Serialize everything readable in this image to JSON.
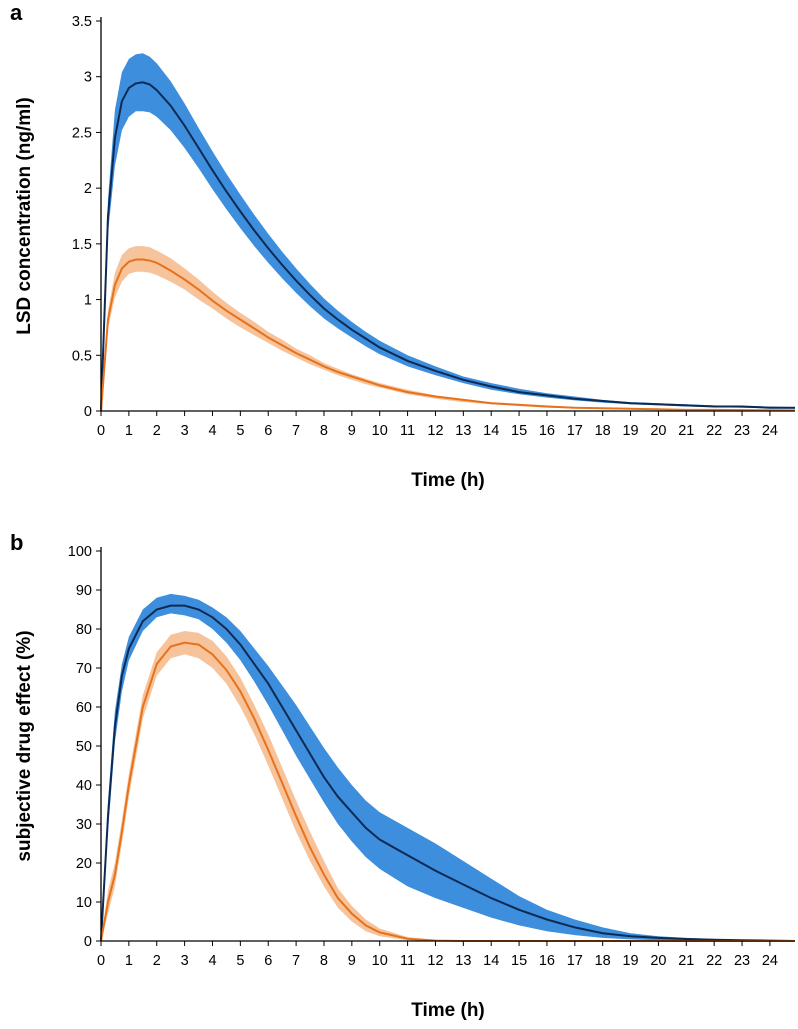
{
  "chart_data": [
    {
      "panel": "a",
      "type": "line",
      "xlabel": "Time (h)",
      "ylabel": "LSD concentration (ng/ml)",
      "xlim": [
        0,
        24.9
      ],
      "ylim": [
        0,
        3.5
      ],
      "xticks": [
        0,
        1,
        2,
        3,
        4,
        5,
        6,
        7,
        8,
        9,
        10,
        11,
        12,
        13,
        14,
        15,
        16,
        17,
        18,
        19,
        20,
        21,
        22,
        23,
        24
      ],
      "yticks": [
        "0",
        "0.5",
        "1",
        "1.5",
        "2",
        "2.5",
        "3",
        "3.5"
      ],
      "x": [
        0,
        0.25,
        0.5,
        0.75,
        1,
        1.25,
        1.5,
        1.75,
        2,
        2.5,
        3,
        3.5,
        4,
        4.5,
        5,
        5.5,
        6,
        6.5,
        7,
        7.5,
        8,
        8.5,
        9,
        9.5,
        10,
        11,
        12,
        13,
        14,
        15,
        16,
        17,
        18,
        19,
        20,
        21,
        22,
        23,
        24,
        24.9
      ],
      "series": [
        {
          "name": "blue",
          "line_color": "#0d2a55",
          "band_color": "#3d8edc",
          "values": [
            0,
            1.75,
            2.45,
            2.78,
            2.9,
            2.94,
            2.95,
            2.93,
            2.88,
            2.74,
            2.56,
            2.36,
            2.16,
            1.97,
            1.79,
            1.62,
            1.46,
            1.31,
            1.17,
            1.04,
            0.92,
            0.82,
            0.73,
            0.65,
            0.57,
            0.45,
            0.36,
            0.28,
            0.22,
            0.17,
            0.14,
            0.11,
            0.09,
            0.07,
            0.06,
            0.05,
            0.04,
            0.04,
            0.03,
            0.03
          ],
          "lower": [
            0,
            1.6,
            2.2,
            2.52,
            2.64,
            2.69,
            2.69,
            2.68,
            2.64,
            2.52,
            2.36,
            2.18,
            1.99,
            1.81,
            1.64,
            1.48,
            1.33,
            1.19,
            1.06,
            0.94,
            0.83,
            0.74,
            0.66,
            0.58,
            0.51,
            0.4,
            0.32,
            0.25,
            0.19,
            0.15,
            0.12,
            0.095,
            0.075,
            0.06,
            0.05,
            0.04,
            0.035,
            0.03,
            0.025,
            0.02
          ],
          "upper": [
            0,
            1.9,
            2.7,
            3.04,
            3.16,
            3.2,
            3.21,
            3.18,
            3.12,
            2.96,
            2.76,
            2.54,
            2.33,
            2.13,
            1.94,
            1.76,
            1.59,
            1.43,
            1.28,
            1.14,
            1.01,
            0.9,
            0.8,
            0.71,
            0.63,
            0.5,
            0.4,
            0.31,
            0.25,
            0.2,
            0.16,
            0.13,
            0.1,
            0.08,
            0.07,
            0.06,
            0.05,
            0.045,
            0.04,
            0.035
          ]
        },
        {
          "name": "orange",
          "line_color": "#e8721c",
          "band_color": "#f6c39a",
          "values": [
            0,
            0.82,
            1.13,
            1.28,
            1.34,
            1.36,
            1.36,
            1.35,
            1.33,
            1.26,
            1.18,
            1.09,
            0.99,
            0.9,
            0.82,
            0.74,
            0.66,
            0.59,
            0.52,
            0.46,
            0.4,
            0.35,
            0.31,
            0.27,
            0.23,
            0.17,
            0.13,
            0.1,
            0.07,
            0.055,
            0.04,
            0.03,
            0.025,
            0.02,
            0.015,
            0.01,
            0.01,
            0.008,
            0.006,
            0.005
          ],
          "lower": [
            0,
            0.74,
            1.02,
            1.16,
            1.23,
            1.25,
            1.25,
            1.24,
            1.22,
            1.16,
            1.09,
            1.0,
            0.92,
            0.83,
            0.75,
            0.68,
            0.61,
            0.54,
            0.48,
            0.42,
            0.37,
            0.32,
            0.28,
            0.24,
            0.21,
            0.15,
            0.11,
            0.08,
            0.06,
            0.045,
            0.03,
            0.025,
            0.02,
            0.015,
            0.01,
            0.008,
            0.006,
            0.005,
            0.004,
            0.003
          ],
          "upper": [
            0,
            0.9,
            1.24,
            1.4,
            1.46,
            1.48,
            1.48,
            1.47,
            1.44,
            1.37,
            1.28,
            1.18,
            1.07,
            0.97,
            0.88,
            0.8,
            0.71,
            0.64,
            0.56,
            0.5,
            0.43,
            0.38,
            0.33,
            0.29,
            0.25,
            0.19,
            0.14,
            0.11,
            0.08,
            0.065,
            0.05,
            0.035,
            0.03,
            0.025,
            0.02,
            0.015,
            0.012,
            0.01,
            0.008,
            0.006
          ]
        }
      ]
    },
    {
      "panel": "b",
      "type": "line",
      "xlabel": "Time (h)",
      "ylabel": "subjective drug effect (%)",
      "xlim": [
        0,
        24.9
      ],
      "ylim": [
        0,
        100
      ],
      "xticks": [
        0,
        1,
        2,
        3,
        4,
        5,
        6,
        7,
        8,
        9,
        10,
        11,
        12,
        13,
        14,
        15,
        16,
        17,
        18,
        19,
        20,
        21,
        22,
        23,
        24
      ],
      "yticks": [
        "0",
        "10",
        "20",
        "30",
        "40",
        "50",
        "60",
        "70",
        "80",
        "90",
        "100"
      ],
      "x": [
        0,
        0.25,
        0.5,
        0.75,
        1,
        1.5,
        2,
        2.5,
        3,
        3.5,
        4,
        4.5,
        5,
        5.5,
        6,
        6.5,
        7,
        7.5,
        8,
        8.5,
        9,
        9.5,
        10,
        11,
        12,
        13,
        14,
        15,
        16,
        17,
        18,
        19,
        20,
        21,
        22,
        23,
        24,
        24.9
      ],
      "series": [
        {
          "name": "blue",
          "line_color": "#0d2a55",
          "band_color": "#3d8edc",
          "values": [
            0,
            32,
            55,
            68,
            75,
            82,
            85,
            86,
            86,
            85,
            83,
            80,
            76,
            71,
            66,
            60,
            54,
            48,
            42,
            37,
            33,
            29,
            26,
            22,
            18,
            14.5,
            11,
            8,
            5.5,
            3.5,
            2,
            1.2,
            0.8,
            0.5,
            0.3,
            0.2,
            0.1,
            0
          ],
          "lower": [
            0,
            28,
            51,
            64,
            72,
            79.5,
            83,
            84,
            83.5,
            82.5,
            80,
            76.5,
            72,
            66.5,
            60.5,
            54,
            47.5,
            41.5,
            35.5,
            30,
            25.5,
            21.5,
            18.5,
            14,
            11,
            8.5,
            6,
            4,
            2.5,
            1.5,
            0.8,
            0.4,
            0.2,
            0.1,
            0.05,
            0,
            0,
            0
          ],
          "upper": [
            0,
            36,
            59,
            71,
            78,
            85,
            88,
            89,
            88.5,
            87.5,
            85.5,
            83,
            79.5,
            75,
            70.5,
            65.5,
            60.5,
            55,
            49.5,
            44.5,
            40,
            36,
            33,
            29,
            25,
            20.5,
            16,
            11.5,
            8,
            5.5,
            3.5,
            2,
            1.2,
            0.8,
            0.5,
            0.3,
            0.2,
            0
          ]
        },
        {
          "name": "orange",
          "line_color": "#e8721c",
          "band_color": "#f6c39a",
          "values": [
            0,
            10,
            17,
            28,
            40,
            60,
            71,
            75.5,
            76.5,
            76,
            73.5,
            69.5,
            64,
            57,
            49,
            40.5,
            32,
            24,
            17,
            11,
            7,
            4,
            2.2,
            0.6,
            0.1,
            0,
            0,
            0,
            0,
            0,
            0,
            0,
            0,
            0,
            0,
            0,
            0,
            0
          ],
          "lower": [
            0,
            7,
            14,
            25,
            37,
            57,
            68,
            72.5,
            73.5,
            72.5,
            70,
            66,
            60,
            53,
            45,
            36.5,
            28,
            20.5,
            14,
            8.5,
            5,
            2.5,
            1.2,
            0.2,
            0,
            0,
            0,
            0,
            0,
            0,
            0,
            0,
            0,
            0,
            0,
            0,
            0,
            0
          ],
          "upper": [
            0,
            13,
            20,
            31,
            43,
            63,
            74,
            78.5,
            79.5,
            79,
            77,
            73,
            67.5,
            60.5,
            53,
            44.5,
            36,
            28,
            20.5,
            13.5,
            9,
            5.5,
            3.2,
            1,
            0.3,
            0,
            0,
            0,
            0,
            0,
            0,
            0,
            0,
            0,
            0,
            0,
            0,
            0
          ]
        }
      ]
    }
  ]
}
